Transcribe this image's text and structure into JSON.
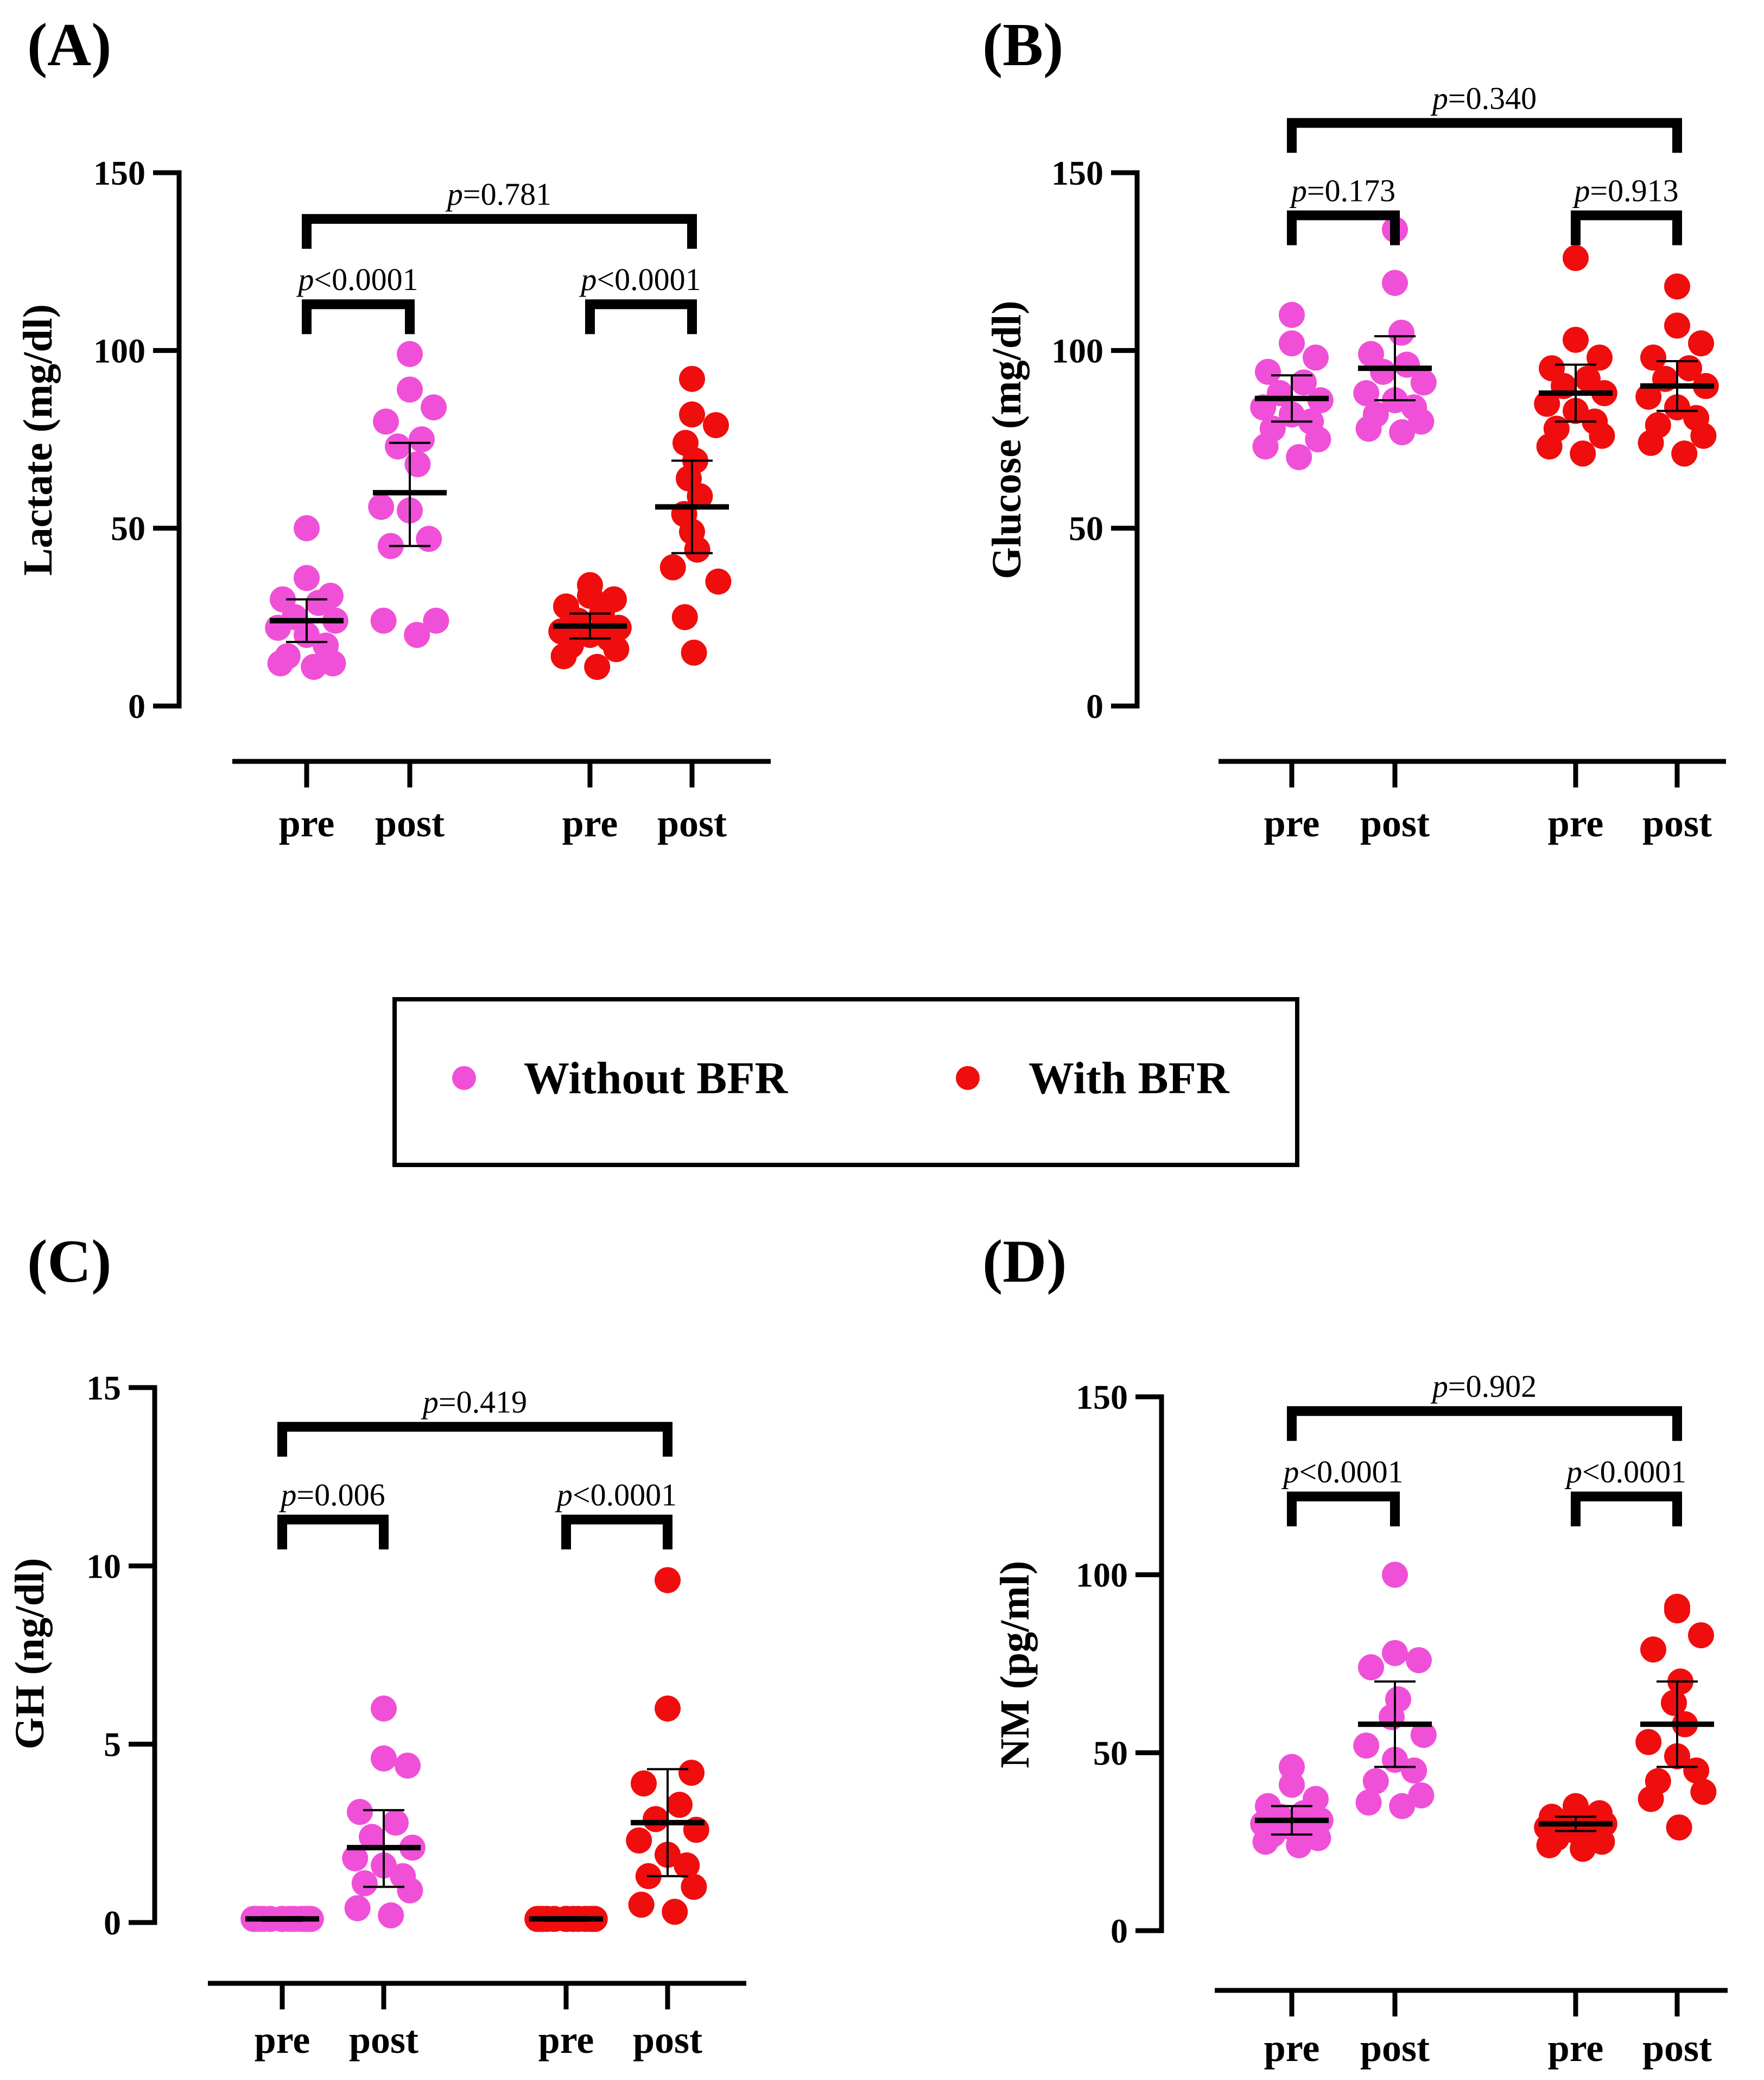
{
  "chart_data": [
    {
      "type": "scatter",
      "panel": "(A)",
      "ylabel": "Lactate (mg/dl)",
      "ylim": [
        0,
        150
      ],
      "yticks": [
        "0",
        "50",
        "100",
        "150"
      ],
      "categories": [
        "pre",
        "post",
        "pre",
        "post"
      ],
      "groups": [
        {
          "name": "Without BFR",
          "color": "#f050d8",
          "values": [
            50,
            36,
            31,
            30,
            29,
            25,
            24,
            22,
            20,
            17,
            14,
            12,
            12,
            11
          ],
          "mean": 24,
          "err": [
            18,
            30
          ]
        },
        {
          "name": "Without BFR",
          "color": "#f050d8",
          "values": [
            99,
            89,
            84,
            80,
            75,
            73,
            68,
            56,
            55,
            47,
            45,
            24,
            24,
            20
          ],
          "mean": 60,
          "err": [
            45,
            74
          ]
        },
        {
          "name": "With BFR",
          "color": "#f00d0d",
          "values": [
            34,
            31,
            30,
            28,
            26,
            24,
            22,
            21,
            20,
            19,
            17,
            16,
            14,
            11
          ],
          "mean": 22.5,
          "err": [
            19,
            26
          ]
        },
        {
          "name": "With BFR",
          "color": "#f00d0d",
          "values": [
            92,
            82,
            79,
            74,
            69,
            64,
            59,
            54,
            49,
            44,
            39,
            35,
            25,
            15
          ],
          "mean": 56,
          "err": [
            43,
            69
          ]
        }
      ],
      "comparisons": [
        {
          "from": 0,
          "to": 1,
          "p_symbol": "p",
          "p_rest": "<0.0001",
          "y": 113
        },
        {
          "from": 2,
          "to": 3,
          "p_symbol": "p",
          "p_rest": "<0.0001",
          "y": 113
        },
        {
          "from": 0,
          "to": 3,
          "p_symbol": "p",
          "p_rest": "=0.781",
          "y": 137
        }
      ]
    },
    {
      "type": "scatter",
      "panel": "(B)",
      "ylabel": "Glucose (mg/dl)",
      "ylim": [
        0,
        150
      ],
      "yticks": [
        "0",
        "50",
        "100",
        "150"
      ],
      "categories": [
        "pre",
        "post",
        "pre",
        "post"
      ],
      "groups": [
        {
          "name": "Without BFR",
          "color": "#f050d8",
          "values": [
            110,
            102,
            98,
            94,
            91,
            88,
            86,
            84,
            82,
            80,
            78,
            75,
            73,
            70
          ],
          "mean": 86.5,
          "err": [
            80,
            93
          ]
        },
        {
          "name": "Without BFR",
          "color": "#f050d8",
          "values": [
            134,
            119,
            105,
            99,
            96,
            94,
            91,
            88,
            86,
            84,
            82,
            80,
            78,
            77
          ],
          "mean": 95,
          "err": [
            86,
            104
          ]
        },
        {
          "name": "With BFR",
          "color": "#f00d0d",
          "values": [
            126,
            103,
            98,
            95,
            92,
            90,
            88,
            85,
            83,
            80,
            78,
            76,
            73,
            71
          ],
          "mean": 88,
          "err": [
            80,
            96
          ]
        },
        {
          "name": "With BFR",
          "color": "#f00d0d",
          "values": [
            118,
            107,
            102,
            98,
            95,
            92,
            90,
            87,
            84,
            81,
            79,
            76,
            74,
            71
          ],
          "mean": 90,
          "err": [
            83,
            97
          ]
        }
      ],
      "comparisons": [
        {
          "from": 0,
          "to": 1,
          "p_symbol": "p",
          "p_rest": "=0.173",
          "y": 138
        },
        {
          "from": 2,
          "to": 3,
          "p_symbol": "p",
          "p_rest": "=0.913",
          "y": 138
        },
        {
          "from": 0,
          "to": 3,
          "p_symbol": "p",
          "p_rest": "=0.340",
          "y": 164
        }
      ]
    },
    {
      "type": "scatter",
      "panel": "(C)",
      "ylabel": "GH (ng/dl)",
      "ylim": [
        0,
        15
      ],
      "yticks": [
        "0",
        "5",
        "10",
        "15"
      ],
      "categories": [
        "pre",
        "post",
        "pre",
        "post"
      ],
      "groups": [
        {
          "name": "Without BFR",
          "color": "#f050d8",
          "values": [
            0.1,
            0.1,
            0.1,
            0.1,
            0.1,
            0.1,
            0.1,
            0.1,
            0.1,
            0.1,
            0.1,
            0.1,
            0.1,
            0.1
          ],
          "mean": 0.1,
          "err": [
            0.05,
            0.15
          ]
        },
        {
          "name": "Without BFR",
          "color": "#f050d8",
          "values": [
            6.0,
            4.6,
            4.4,
            3.1,
            2.8,
            2.4,
            2.1,
            1.8,
            1.6,
            1.3,
            1.1,
            0.9,
            0.4,
            0.2
          ],
          "mean": 2.1,
          "err": [
            1.0,
            3.15
          ]
        },
        {
          "name": "With BFR",
          "color": "#f00d0d",
          "values": [
            0.1,
            0.1,
            0.1,
            0.1,
            0.1,
            0.1,
            0.1,
            0.1,
            0.1,
            0.1,
            0.1,
            0.1,
            0.1,
            0.1
          ],
          "mean": 0.1,
          "err": [
            0.05,
            0.15
          ]
        },
        {
          "name": "With BFR",
          "color": "#f00d0d",
          "values": [
            9.6,
            6.0,
            4.2,
            3.9,
            3.3,
            2.9,
            2.6,
            2.3,
            1.9,
            1.6,
            1.3,
            1.0,
            0.5,
            0.3
          ],
          "mean": 2.8,
          "err": [
            1.3,
            4.3
          ]
        }
      ],
      "comparisons": [
        {
          "from": 0,
          "to": 1,
          "p_symbol": "p",
          "p_rest": "=0.006",
          "y": 11.3
        },
        {
          "from": 2,
          "to": 3,
          "p_symbol": "p",
          "p_rest": "<0.0001",
          "y": 11.3
        },
        {
          "from": 0,
          "to": 3,
          "p_symbol": "p",
          "p_rest": "=0.419",
          "y": 13.9
        }
      ]
    },
    {
      "type": "scatter",
      "panel": "(D)",
      "ylabel": "NM  (pg/ml)",
      "ylim": [
        0,
        150
      ],
      "yticks": [
        "0",
        "50",
        "100",
        "150"
      ],
      "categories": [
        "pre",
        "post",
        "pre",
        "post"
      ],
      "groups": [
        {
          "name": "Without BFR",
          "color": "#f050d8",
          "values": [
            46,
            41,
            37,
            35,
            33,
            32,
            31,
            30,
            29,
            28,
            27,
            26,
            25,
            24
          ],
          "mean": 31,
          "err": [
            27,
            35
          ]
        },
        {
          "name": "Without BFR",
          "color": "#f050d8",
          "values": [
            100,
            78,
            76,
            74,
            65,
            60,
            55,
            52,
            48,
            45,
            42,
            38,
            36,
            35
          ],
          "mean": 58,
          "err": [
            46,
            70
          ]
        },
        {
          "name": "With BFR",
          "color": "#f00d0d",
          "values": [
            35,
            34,
            33,
            32,
            31,
            30,
            30,
            29,
            28,
            27,
            26,
            25,
            24,
            23
          ],
          "mean": 30,
          "err": [
            28,
            32
          ]
        },
        {
          "name": "With BFR",
          "color": "#f00d0d",
          "values": [
            91,
            90,
            83,
            79,
            70,
            64,
            58,
            53,
            49,
            45,
            42,
            39,
            37,
            29
          ],
          "mean": 58,
          "err": [
            46,
            70
          ]
        }
      ],
      "comparisons": [
        {
          "from": 0,
          "to": 1,
          "p_symbol": "p",
          "p_rest": "<0.0001",
          "y": 122
        },
        {
          "from": 2,
          "to": 3,
          "p_symbol": "p",
          "p_rest": "<0.0001",
          "y": 122
        },
        {
          "from": 0,
          "to": 3,
          "p_symbol": "p",
          "p_rest": "=0.902",
          "y": 146
        }
      ]
    }
  ],
  "legend": {
    "items": [
      {
        "label": "Without BFR",
        "color": "#f050d8"
      },
      {
        "label": "With BFR",
        "color": "#f00d0d"
      }
    ]
  }
}
